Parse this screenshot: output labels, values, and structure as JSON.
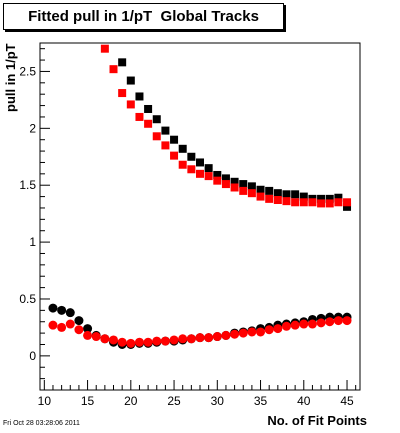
{
  "title": "Fitted pull in 1/pT  Global Tracks",
  "timestamp": "Fri Oct 28 03:28:06 2011",
  "colors": {
    "series_black": "#000000",
    "series_red": "#ff0000",
    "axis": "#000000"
  },
  "chart_data": {
    "type": "scatter",
    "title": "Fitted pull in 1/pT  Global Tracks",
    "xlabel": "No. of Fit Points",
    "ylabel": "pull in 1/pT",
    "xlim": [
      9.5,
      46.5
    ],
    "ylim": [
      -0.3,
      2.75
    ],
    "xticks": [
      "10",
      "15",
      "20",
      "25",
      "30",
      "35",
      "40",
      "45"
    ],
    "yticks": [
      "0",
      "0.5",
      "1",
      "1.5",
      "2",
      "2.5"
    ],
    "grid": false,
    "series": [
      {
        "marker": "square",
        "color": "#000000",
        "x": [
          19,
          20,
          21,
          22,
          23,
          24,
          25,
          26,
          27,
          28,
          29,
          30,
          31,
          32,
          33,
          34,
          35,
          36,
          37,
          38,
          39,
          40,
          41,
          42,
          43,
          44,
          45
        ],
        "y": [
          2.58,
          2.42,
          2.28,
          2.17,
          2.08,
          1.98,
          1.9,
          1.82,
          1.75,
          1.7,
          1.65,
          1.59,
          1.56,
          1.53,
          1.51,
          1.49,
          1.46,
          1.45,
          1.43,
          1.42,
          1.42,
          1.4,
          1.38,
          1.38,
          1.38,
          1.39,
          1.31
        ]
      },
      {
        "marker": "square",
        "color": "#ff0000",
        "x": [
          17,
          18,
          19,
          20,
          21,
          22,
          23,
          24,
          25,
          26,
          27,
          28,
          29,
          30,
          31,
          32,
          33,
          34,
          35,
          36,
          37,
          38,
          39,
          40,
          41,
          42,
          43,
          44,
          45
        ],
        "y": [
          2.7,
          2.52,
          2.31,
          2.21,
          2.1,
          2.04,
          1.93,
          1.85,
          1.76,
          1.68,
          1.64,
          1.6,
          1.58,
          1.54,
          1.51,
          1.48,
          1.45,
          1.43,
          1.4,
          1.38,
          1.37,
          1.36,
          1.35,
          1.35,
          1.35,
          1.34,
          1.34,
          1.35,
          1.35
        ]
      },
      {
        "marker": "circle",
        "color": "#000000",
        "x": [
          11,
          12,
          13,
          14,
          15,
          16,
          17,
          18,
          19,
          20,
          21,
          22,
          23,
          24,
          25,
          26,
          27,
          28,
          29,
          30,
          31,
          32,
          33,
          34,
          35,
          36,
          37,
          38,
          39,
          40,
          41,
          42,
          43,
          44,
          45
        ],
        "y": [
          0.42,
          0.4,
          0.38,
          0.31,
          0.24,
          0.18,
          0.15,
          0.12,
          0.1,
          0.1,
          0.11,
          0.11,
          0.12,
          0.13,
          0.13,
          0.14,
          0.15,
          0.16,
          0.16,
          0.17,
          0.18,
          0.2,
          0.21,
          0.22,
          0.24,
          0.25,
          0.27,
          0.28,
          0.29,
          0.3,
          0.32,
          0.33,
          0.34,
          0.34,
          0.34
        ]
      },
      {
        "marker": "circle",
        "color": "#ff0000",
        "x": [
          11,
          12,
          13,
          14,
          15,
          16,
          17,
          18,
          19,
          20,
          21,
          22,
          23,
          24,
          25,
          26,
          27,
          28,
          29,
          30,
          31,
          32,
          33,
          34,
          35,
          36,
          37,
          38,
          39,
          40,
          41,
          42,
          43,
          44,
          45
        ],
        "y": [
          0.27,
          0.25,
          0.28,
          0.23,
          0.18,
          0.17,
          0.15,
          0.14,
          0.12,
          0.11,
          0.12,
          0.12,
          0.13,
          0.13,
          0.14,
          0.15,
          0.15,
          0.16,
          0.16,
          0.17,
          0.18,
          0.19,
          0.2,
          0.21,
          0.21,
          0.23,
          0.24,
          0.26,
          0.27,
          0.28,
          0.28,
          0.29,
          0.3,
          0.31,
          0.31
        ]
      }
    ]
  }
}
